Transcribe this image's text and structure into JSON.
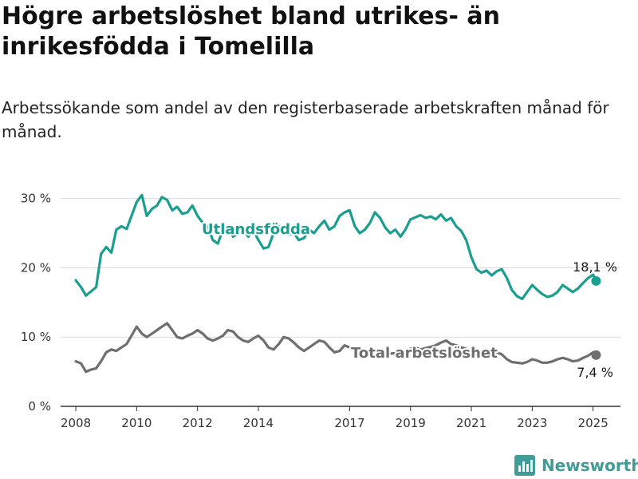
{
  "header": {
    "title": "Högre arbetslöshet bland utrikes- än inrikesfödda i Tomelilla",
    "subtitle": "Arbetssökande som andel av den registerbaserade arbetskraften månad för månad."
  },
  "brand": {
    "name": "Newsworthy",
    "icon": "bar-chart-logo-icon",
    "color": "#3f9c96"
  },
  "chart_data": {
    "type": "line",
    "title": "Högre arbetslöshet bland utrikes- än inrikesfödda i Tomelilla",
    "subtitle": "Arbetssökande som andel av den registerbaserade arbetskraften månad för månad.",
    "xlabel": "",
    "ylabel": "",
    "xlim": [
      2007.5,
      2025.9
    ],
    "ylim": [
      0,
      31
    ],
    "x_ticks": [
      2008,
      2010,
      2012,
      2014,
      2017,
      2019,
      2021,
      2023,
      2025
    ],
    "x_tick_labels": [
      "2008",
      "2010",
      "2012",
      "2014",
      "2017",
      "2019",
      "2021",
      "2023",
      "2025"
    ],
    "y_ticks": [
      0,
      10,
      20,
      30
    ],
    "y_tick_labels": [
      "0 %",
      "10 %",
      "20 %",
      "30 %"
    ],
    "grid": true,
    "legend": "inline labels",
    "series": [
      {
        "name": "Utlandsfödda",
        "color": "#1a9e8f",
        "end_label": "18,1 %",
        "points": [
          [
            2008.0,
            18.2
          ],
          [
            2008.17,
            17.2
          ],
          [
            2008.33,
            16.0
          ],
          [
            2008.5,
            16.6
          ],
          [
            2008.67,
            17.2
          ],
          [
            2008.83,
            22.0
          ],
          [
            2009.0,
            23.0
          ],
          [
            2009.17,
            22.2
          ],
          [
            2009.33,
            25.5
          ],
          [
            2009.5,
            26.0
          ],
          [
            2009.67,
            25.6
          ],
          [
            2009.83,
            27.5
          ],
          [
            2010.0,
            29.5
          ],
          [
            2010.17,
            30.5
          ],
          [
            2010.33,
            27.5
          ],
          [
            2010.5,
            28.5
          ],
          [
            2010.67,
            29.0
          ],
          [
            2010.83,
            30.2
          ],
          [
            2011.0,
            29.8
          ],
          [
            2011.17,
            28.3
          ],
          [
            2011.33,
            28.8
          ],
          [
            2011.5,
            27.8
          ],
          [
            2011.67,
            28.0
          ],
          [
            2011.83,
            29.0
          ],
          [
            2012.0,
            27.5
          ],
          [
            2012.17,
            26.5
          ],
          [
            2012.33,
            26.0
          ],
          [
            2012.5,
            24.0
          ],
          [
            2012.67,
            23.5
          ],
          [
            2012.83,
            25.5
          ],
          [
            2013.0,
            26.0
          ],
          [
            2013.17,
            24.5
          ],
          [
            2013.33,
            25.0
          ],
          [
            2013.5,
            25.5
          ],
          [
            2013.67,
            24.5
          ],
          [
            2013.83,
            25.5
          ],
          [
            2014.0,
            24.0
          ],
          [
            2014.17,
            22.8
          ],
          [
            2014.33,
            23.0
          ],
          [
            2014.5,
            25.0
          ],
          [
            2014.67,
            26.0
          ],
          [
            2014.83,
            25.0
          ],
          [
            2015.0,
            24.8
          ],
          [
            2015.17,
            25.0
          ],
          [
            2015.33,
            24.0
          ],
          [
            2015.5,
            24.3
          ],
          [
            2015.67,
            25.5
          ],
          [
            2015.83,
            25.0
          ],
          [
            2016.0,
            26.0
          ],
          [
            2016.17,
            26.8
          ],
          [
            2016.33,
            25.5
          ],
          [
            2016.5,
            26.0
          ],
          [
            2016.67,
            27.5
          ],
          [
            2016.83,
            28.0
          ],
          [
            2017.0,
            28.3
          ],
          [
            2017.17,
            26.0
          ],
          [
            2017.33,
            25.0
          ],
          [
            2017.5,
            25.5
          ],
          [
            2017.67,
            26.5
          ],
          [
            2017.83,
            28.0
          ],
          [
            2018.0,
            27.2
          ],
          [
            2018.17,
            25.8
          ],
          [
            2018.33,
            25.0
          ],
          [
            2018.5,
            25.5
          ],
          [
            2018.67,
            24.5
          ],
          [
            2018.83,
            25.5
          ],
          [
            2019.0,
            27.0
          ],
          [
            2019.17,
            27.3
          ],
          [
            2019.33,
            27.6
          ],
          [
            2019.5,
            27.2
          ],
          [
            2019.67,
            27.4
          ],
          [
            2019.83,
            27.0
          ],
          [
            2020.0,
            27.7
          ],
          [
            2020.17,
            26.8
          ],
          [
            2020.33,
            27.2
          ],
          [
            2020.5,
            26.0
          ],
          [
            2020.67,
            25.3
          ],
          [
            2020.83,
            24.0
          ],
          [
            2021.0,
            21.5
          ],
          [
            2021.17,
            19.8
          ],
          [
            2021.33,
            19.3
          ],
          [
            2021.5,
            19.6
          ],
          [
            2021.67,
            18.9
          ],
          [
            2021.83,
            19.5
          ],
          [
            2022.0,
            19.8
          ],
          [
            2022.17,
            18.5
          ],
          [
            2022.33,
            16.8
          ],
          [
            2022.5,
            15.9
          ],
          [
            2022.67,
            15.5
          ],
          [
            2022.83,
            16.5
          ],
          [
            2023.0,
            17.5
          ],
          [
            2023.17,
            16.8
          ],
          [
            2023.33,
            16.2
          ],
          [
            2023.5,
            15.8
          ],
          [
            2023.67,
            16.0
          ],
          [
            2023.83,
            16.5
          ],
          [
            2024.0,
            17.5
          ],
          [
            2024.17,
            17.0
          ],
          [
            2024.33,
            16.5
          ],
          [
            2024.5,
            17.0
          ],
          [
            2024.67,
            17.8
          ],
          [
            2024.83,
            18.5
          ],
          [
            2025.0,
            19.0
          ],
          [
            2025.1,
            18.1
          ]
        ]
      },
      {
        "name": "Total arbetslöshet",
        "color": "#6e6e73",
        "end_label": "7,4 %",
        "points": [
          [
            2008.0,
            6.5
          ],
          [
            2008.17,
            6.2
          ],
          [
            2008.33,
            5.0
          ],
          [
            2008.5,
            5.3
          ],
          [
            2008.67,
            5.5
          ],
          [
            2008.83,
            6.5
          ],
          [
            2009.0,
            7.8
          ],
          [
            2009.17,
            8.2
          ],
          [
            2009.33,
            8.0
          ],
          [
            2009.5,
            8.5
          ],
          [
            2009.67,
            9.0
          ],
          [
            2009.83,
            10.2
          ],
          [
            2010.0,
            11.5
          ],
          [
            2010.17,
            10.5
          ],
          [
            2010.33,
            10.0
          ],
          [
            2010.5,
            10.5
          ],
          [
            2010.67,
            11.0
          ],
          [
            2010.83,
            11.5
          ],
          [
            2011.0,
            12.0
          ],
          [
            2011.17,
            11.0
          ],
          [
            2011.33,
            10.0
          ],
          [
            2011.5,
            9.8
          ],
          [
            2011.67,
            10.2
          ],
          [
            2011.83,
            10.5
          ],
          [
            2012.0,
            11.0
          ],
          [
            2012.17,
            10.5
          ],
          [
            2012.33,
            9.8
          ],
          [
            2012.5,
            9.5
          ],
          [
            2012.67,
            9.8
          ],
          [
            2012.83,
            10.2
          ],
          [
            2013.0,
            11.0
          ],
          [
            2013.17,
            10.8
          ],
          [
            2013.33,
            10.0
          ],
          [
            2013.5,
            9.5
          ],
          [
            2013.67,
            9.3
          ],
          [
            2013.83,
            9.8
          ],
          [
            2014.0,
            10.2
          ],
          [
            2014.17,
            9.5
          ],
          [
            2014.33,
            8.5
          ],
          [
            2014.5,
            8.2
          ],
          [
            2014.67,
            9.0
          ],
          [
            2014.83,
            10.0
          ],
          [
            2015.0,
            9.8
          ],
          [
            2015.17,
            9.2
          ],
          [
            2015.33,
            8.5
          ],
          [
            2015.5,
            8.0
          ],
          [
            2015.67,
            8.5
          ],
          [
            2015.83,
            9.0
          ],
          [
            2016.0,
            9.5
          ],
          [
            2016.17,
            9.3
          ],
          [
            2016.33,
            8.5
          ],
          [
            2016.5,
            7.8
          ],
          [
            2016.67,
            8.0
          ],
          [
            2016.83,
            8.8
          ],
          [
            2017.0,
            8.5
          ],
          [
            2017.17,
            8.2
          ],
          [
            2017.33,
            7.8
          ],
          [
            2017.5,
            7.5
          ],
          [
            2017.67,
            7.8
          ],
          [
            2017.83,
            8.2
          ],
          [
            2018.0,
            8.0
          ],
          [
            2018.17,
            7.8
          ],
          [
            2018.33,
            7.6
          ],
          [
            2018.5,
            7.7
          ],
          [
            2018.67,
            7.9
          ],
          [
            2018.83,
            8.0
          ],
          [
            2019.0,
            8.3
          ],
          [
            2019.17,
            8.5
          ],
          [
            2019.33,
            8.2
          ],
          [
            2019.5,
            8.4
          ],
          [
            2019.67,
            8.6
          ],
          [
            2019.83,
            8.8
          ],
          [
            2020.0,
            9.2
          ],
          [
            2020.17,
            9.5
          ],
          [
            2020.33,
            9.0
          ],
          [
            2020.5,
            8.8
          ],
          [
            2020.67,
            8.5
          ],
          [
            2020.83,
            8.3
          ],
          [
            2021.0,
            8.0
          ],
          [
            2021.17,
            7.8
          ],
          [
            2021.33,
            7.5
          ],
          [
            2021.5,
            7.4
          ],
          [
            2021.67,
            7.6
          ],
          [
            2021.83,
            7.8
          ],
          [
            2022.0,
            7.5
          ],
          [
            2022.17,
            6.8
          ],
          [
            2022.33,
            6.4
          ],
          [
            2022.5,
            6.3
          ],
          [
            2022.67,
            6.2
          ],
          [
            2022.83,
            6.4
          ],
          [
            2023.0,
            6.8
          ],
          [
            2023.17,
            6.6
          ],
          [
            2023.33,
            6.3
          ],
          [
            2023.5,
            6.3
          ],
          [
            2023.67,
            6.5
          ],
          [
            2023.83,
            6.8
          ],
          [
            2024.0,
            7.0
          ],
          [
            2024.17,
            6.8
          ],
          [
            2024.33,
            6.5
          ],
          [
            2024.5,
            6.6
          ],
          [
            2024.67,
            7.0
          ],
          [
            2024.83,
            7.3
          ],
          [
            2025.0,
            7.8
          ],
          [
            2025.1,
            7.4
          ]
        ]
      }
    ]
  }
}
